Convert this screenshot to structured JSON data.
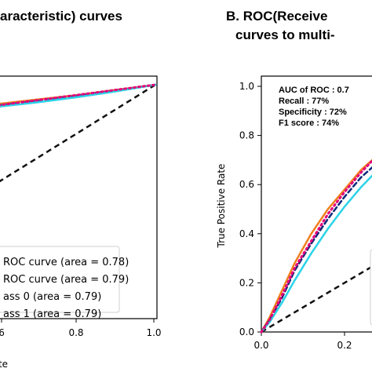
{
  "colors": {
    "orange": "#f07f1f",
    "blue": "#1f5fb5",
    "cyan": "#2bd3e8",
    "magenta": "#e2007a",
    "darkblue": "#0b2a7a",
    "chance": "#111111"
  },
  "chart_data": [
    {
      "type": "line",
      "title_lines": [
        "aracteristic) curves"
      ],
      "xticks": [
        "6",
        "0.8",
        "1.0"
      ],
      "xlabel": "te",
      "xlim": [
        0.6,
        1.0
      ],
      "ylim": [
        0.0,
        1.0
      ],
      "legend_placement": "lower-right",
      "legend": [
        "ROC curve (area = 0.78)",
        "ROC curve (area = 0.79)",
        "ass 0 (area = 0.79)",
        "ass 1 (area = 0.79)"
      ],
      "series": [
        {
          "name": "ROC curve (area = 0.78)",
          "color": "orange",
          "style": "solid",
          "x": [
            0.6,
            0.7,
            0.8,
            0.9,
            1.0
          ],
          "y": [
            0.87,
            0.9,
            0.93,
            0.965,
            1.0
          ]
        },
        {
          "name": "ROC curve (area = 0.79)",
          "color": "blue",
          "style": "dashed",
          "x": [
            0.6,
            0.7,
            0.8,
            0.9,
            1.0
          ],
          "y": [
            0.86,
            0.89,
            0.925,
            0.96,
            1.0
          ]
        },
        {
          "name": "ass 0 (area = 0.79)",
          "color": "cyan",
          "style": "solid",
          "x": [
            0.6,
            0.7,
            0.8,
            0.9,
            1.0
          ],
          "y": [
            0.85,
            0.88,
            0.915,
            0.955,
            1.0
          ]
        },
        {
          "name": "ass 1 (area = 0.79)",
          "color": "magenta",
          "style": "dotted",
          "x": [
            0.6,
            0.7,
            0.8,
            0.9,
            1.0
          ],
          "y": [
            0.86,
            0.895,
            0.93,
            0.965,
            1.0
          ]
        }
      ],
      "chance_line": {
        "x": [
          0.6,
          1.0
        ],
        "y": [
          0.6,
          1.0
        ]
      }
    },
    {
      "type": "line",
      "title_lines": [
        "B. ROC(Receive",
        "curves to multi-"
      ],
      "xticks": [
        "0.0",
        "0.2"
      ],
      "yticks": [
        "0.0",
        "0.2",
        "0.4",
        "0.6",
        "0.8",
        "1.0"
      ],
      "ylabel": "True Positive Rate",
      "xlim": [
        0.0,
        0.3
      ],
      "ylim": [
        0.0,
        1.0
      ],
      "metrics": [
        "AUC of ROC : 0.7",
        "Recall : 77%",
        "Specificity : 72%",
        "F1 score : 74%"
      ],
      "series": [
        {
          "name": "",
          "color": "orange",
          "style": "solid",
          "x": [
            0.0,
            0.02,
            0.05,
            0.08,
            0.12,
            0.16,
            0.2,
            0.24,
            0.28,
            0.3
          ],
          "y": [
            0.0,
            0.06,
            0.17,
            0.28,
            0.4,
            0.5,
            0.58,
            0.66,
            0.72,
            0.75
          ]
        },
        {
          "name": "",
          "color": "darkblue",
          "style": "dashed",
          "x": [
            0.0,
            0.02,
            0.05,
            0.08,
            0.12,
            0.16,
            0.2,
            0.24,
            0.28,
            0.3
          ],
          "y": [
            0.0,
            0.05,
            0.14,
            0.25,
            0.36,
            0.46,
            0.55,
            0.63,
            0.69,
            0.72
          ]
        },
        {
          "name": "",
          "color": "cyan",
          "style": "solid",
          "x": [
            0.0,
            0.02,
            0.05,
            0.08,
            0.12,
            0.16,
            0.2,
            0.24,
            0.28,
            0.3
          ],
          "y": [
            0.0,
            0.04,
            0.12,
            0.21,
            0.32,
            0.42,
            0.51,
            0.59,
            0.66,
            0.69
          ]
        },
        {
          "name": "",
          "color": "magenta",
          "style": "dotted",
          "x": [
            0.0,
            0.02,
            0.05,
            0.08,
            0.12,
            0.16,
            0.2,
            0.24,
            0.28,
            0.3
          ],
          "y": [
            0.0,
            0.05,
            0.15,
            0.26,
            0.37,
            0.48,
            0.57,
            0.65,
            0.72,
            0.76
          ]
        }
      ],
      "chance_line": {
        "x": [
          0.0,
          0.3
        ],
        "y": [
          0.0,
          0.3
        ]
      }
    }
  ]
}
